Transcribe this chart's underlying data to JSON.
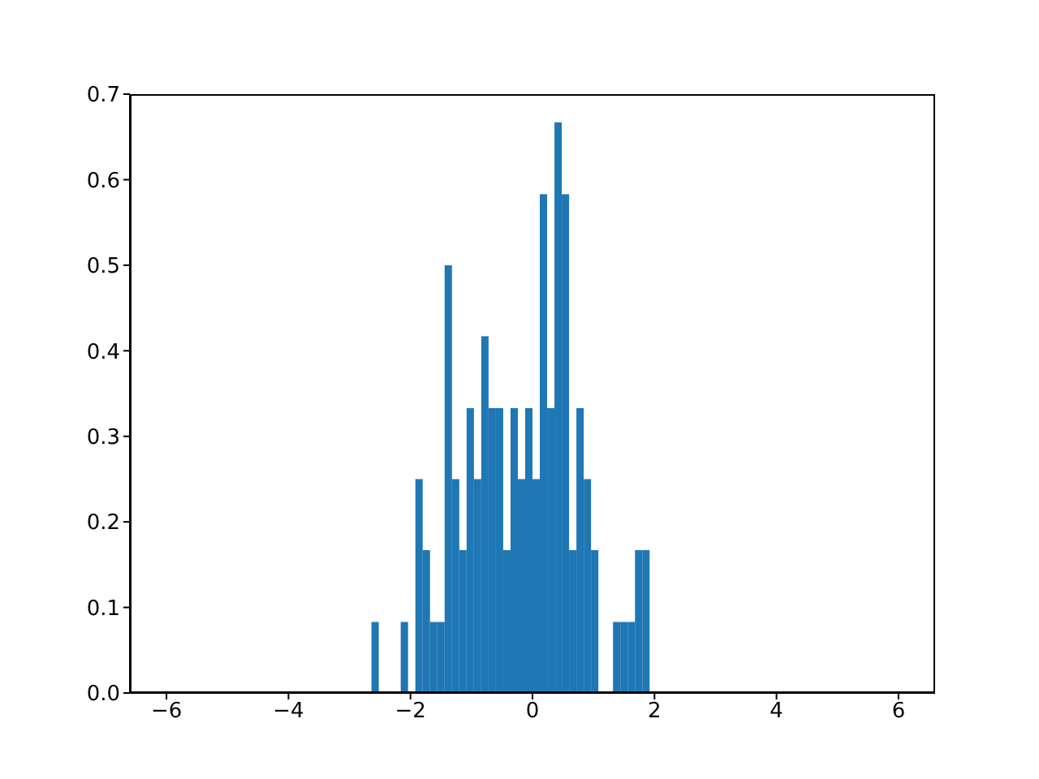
{
  "chart_data": {
    "type": "histogram",
    "bins": [
      -6,
      -5.88,
      -5.76,
      -5.64,
      -5.52,
      -5.4,
      -5.28,
      -5.16,
      -5.04,
      -4.92,
      -4.8,
      -4.68,
      -4.56,
      -4.44,
      -4.32,
      -4.2,
      -4.08,
      -3.96,
      -3.84,
      -3.72,
      -3.6,
      -3.48,
      -3.36,
      -3.24,
      -3.12,
      -3,
      -2.88,
      -2.76,
      -2.64,
      -2.52,
      -2.4,
      -2.28,
      -2.16,
      -2.04,
      -1.92,
      -1.8,
      -1.68,
      -1.56,
      -1.44,
      -1.32,
      -1.2,
      -1.08,
      -0.96,
      -0.84,
      -0.72,
      -0.6,
      -0.48,
      -0.36,
      -0.24,
      -0.12,
      0,
      0.12,
      0.24,
      0.36,
      0.48,
      0.6,
      0.72,
      0.84,
      0.96,
      1.08,
      1.2,
      1.32,
      1.44,
      1.56,
      1.68,
      1.8,
      1.92,
      2.04,
      2.16,
      2.28,
      2.4,
      2.52,
      2.64,
      2.76,
      2.88,
      3,
      3.12,
      3.24,
      3.36,
      3.48,
      3.6,
      3.72,
      3.84,
      3.96,
      4.08,
      4.2,
      4.32,
      4.44,
      4.56,
      4.68,
      4.8,
      4.92,
      5.04,
      5.16,
      5.28,
      5.4,
      5.52,
      5.64,
      5.76,
      5.88,
      6
    ],
    "values": [
      0,
      0,
      0,
      0,
      0,
      0,
      0,
      0,
      0,
      0,
      0,
      0,
      0,
      0,
      0,
      0,
      0,
      0,
      0,
      0,
      0,
      0,
      0,
      0,
      0,
      0,
      0,
      0,
      0.083,
      0,
      0,
      0,
      0.083,
      0,
      0.25,
      0.167,
      0.083,
      0.083,
      0.5,
      0.25,
      0.167,
      0.333,
      0.25,
      0.417,
      0.333,
      0.333,
      0.167,
      0.333,
      0.25,
      0.333,
      0.25,
      0.583,
      0.333,
      0.667,
      0.583,
      0.167,
      0.333,
      0.25,
      0.167,
      0,
      0,
      0.083,
      0.083,
      0.083,
      0.167,
      0.167,
      0,
      0,
      0,
      0,
      0,
      0,
      0,
      0,
      0,
      0,
      0,
      0,
      0,
      0,
      0,
      0,
      0,
      0,
      0,
      0,
      0,
      0,
      0,
      0,
      0,
      0,
      0,
      0,
      0,
      0,
      0,
      0,
      0,
      0
    ],
    "color": "#1f77b4",
    "xlim": [
      -6.6,
      6.6
    ],
    "xticks": [
      {
        "value": -6,
        "label": "−6"
      },
      {
        "value": -4,
        "label": "−4"
      },
      {
        "value": -2,
        "label": "−2"
      },
      0,
      2,
      4,
      6
    ],
    "ylim": [
      0,
      0.7
    ],
    "yticks": [
      {
        "value": 0,
        "label": "0.0"
      },
      0.1,
      0.2,
      0.3,
      0.4,
      0.5,
      0.6,
      0.7
    ],
    "grid": false
  }
}
